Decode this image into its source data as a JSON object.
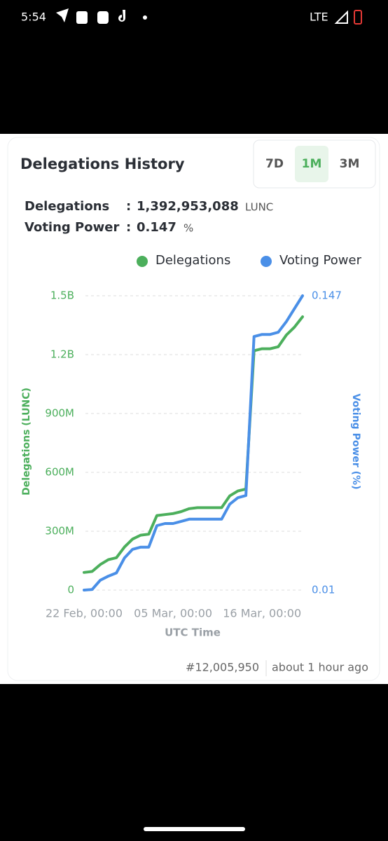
{
  "status_bar": {
    "time": "5:54",
    "network": "LTE"
  },
  "ranges": {
    "options": [
      "7D",
      "1M",
      "3M"
    ],
    "active": "1M"
  },
  "stats": {
    "delegations_label": "Delegations",
    "delegations_sep": ":",
    "delegations_value": "1,392,953,088",
    "delegations_unit": "LUNC",
    "voting_label": "Voting Power",
    "voting_sep": ":",
    "voting_value": "0.147",
    "voting_unit": "%"
  },
  "chart_data": {
    "type": "line",
    "title": "Delegations History",
    "categories": [
      "22 Feb, 00:00",
      null,
      null,
      null,
      null,
      null,
      null,
      null,
      null,
      null,
      null,
      "05 Mar, 00:00",
      null,
      null,
      null,
      null,
      null,
      null,
      null,
      null,
      null,
      null,
      "16 Mar, 00:00",
      null,
      null,
      null,
      null,
      null
    ],
    "series": [
      {
        "name": "Delegations",
        "color": "#4caf5c",
        "values": [
          90000000,
          95000000,
          130000000,
          155000000,
          165000000,
          220000000,
          260000000,
          280000000,
          285000000,
          380000000,
          385000000,
          390000000,
          400000000,
          415000000,
          420000000,
          420000000,
          420000000,
          420000000,
          480000000,
          505000000,
          515000000,
          1220000000,
          1230000000,
          1230000000,
          1240000000,
          1300000000,
          1340000000,
          1392953088
        ]
      },
      {
        "name": "Voting Power",
        "color": "#4a8fe7",
        "axis": "y2",
        "values": [
          0.01,
          0.0103,
          0.0146,
          0.0165,
          0.018,
          0.025,
          0.029,
          0.03,
          0.03,
          0.04,
          0.041,
          0.041,
          0.042,
          0.043,
          0.043,
          0.043,
          0.043,
          0.043,
          0.05,
          0.053,
          0.054,
          0.128,
          0.129,
          0.129,
          0.13,
          0.135,
          0.141,
          0.147
        ]
      }
    ],
    "ylim": [
      0,
      1500000000
    ],
    "yticks": [
      0,
      {
        "value": 300000000,
        "label": "300M"
      },
      {
        "value": 600000000,
        "label": "600M"
      },
      {
        "value": 900000000,
        "label": "900M"
      },
      {
        "value": 1200000000,
        "label": "1.2B"
      },
      {
        "value": 1500000000,
        "label": "1.5B"
      }
    ],
    "y2lim": [
      0.01,
      0.147
    ],
    "y2ticks": [
      0.01,
      0.147
    ],
    "y_label": "Delegations (LUNC)",
    "y2_label": "Voting Power (%)",
    "x_label": "UTC Time",
    "grid": true
  },
  "footer": {
    "block": "#12,005,950",
    "time_ago": "about 1 hour ago"
  }
}
